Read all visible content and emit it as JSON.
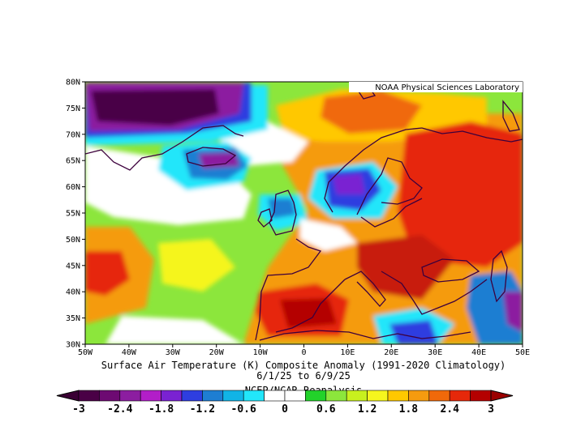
{
  "credit": "NOAA Physical Sciences Laboratory",
  "caption": {
    "line1": "Surface Air Temperature (K) Composite Anomaly (1991-2020 Climatology)",
    "line2": "6/1/25  to 6/9/25",
    "line3": "NCEP/NCAR Reanalysis"
  },
  "axes": {
    "lat_labels": [
      "80N",
      "75N",
      "70N",
      "65N",
      "60N",
      "55N",
      "50N",
      "45N",
      "40N",
      "35N",
      "30N"
    ],
    "lon_labels": [
      "50W",
      "40W",
      "30W",
      "20W",
      "10W",
      "0",
      "10E",
      "20E",
      "30E",
      "40E",
      "50E"
    ],
    "lat_range": [
      30,
      80
    ],
    "lon_range": [
      -50,
      50
    ]
  },
  "colorbar": {
    "colors": [
      "#4a0046",
      "#6d0a72",
      "#8c1ea0",
      "#b21ec8",
      "#7a22d2",
      "#2e3ee0",
      "#1e7ed2",
      "#11b4e6",
      "#22e6fa",
      "#ffffff",
      "#ffffff",
      "#22d22a",
      "#8ce63c",
      "#c8f01e",
      "#f5f51e",
      "#ffc800",
      "#f59b0f",
      "#f0690a",
      "#e6280a",
      "#b40000"
    ],
    "labels": [
      "-3",
      "-2.4",
      "-1.8",
      "-1.2",
      "-0.6",
      "0",
      "0.6",
      "1.2",
      "1.8",
      "2.4",
      "3"
    ],
    "range": [
      -3,
      3
    ]
  },
  "anomaly_field": [
    {
      "lon": -40,
      "lat": 75,
      "value": -3
    },
    {
      "lon": -30,
      "lat": 77,
      "value": -2.7
    },
    {
      "lon": -18,
      "lat": 65,
      "value": -2.4
    },
    {
      "lon": 6,
      "lat": 61,
      "value": -1.6
    },
    {
      "lon": -5,
      "lat": 55,
      "value": -0.9
    },
    {
      "lon": 15,
      "lat": 56,
      "value": -0.9
    },
    {
      "lon": -10,
      "lat": 69,
      "value": 1.2
    },
    {
      "lon": 10,
      "lat": 72,
      "value": 2.1
    },
    {
      "lon": 35,
      "lat": 65,
      "value": 2.7
    },
    {
      "lon": 45,
      "lat": 58,
      "value": 3
    },
    {
      "lon": 25,
      "lat": 47,
      "value": 3
    },
    {
      "lon": 0,
      "lat": 37,
      "value": 3
    },
    {
      "lon": -47,
      "lat": 42,
      "value": 3
    },
    {
      "lon": 22,
      "lat": 32,
      "value": -0.9
    },
    {
      "lon": 40,
      "lat": 35,
      "value": -1.2
    },
    {
      "lon": -35,
      "lat": 35,
      "value": 1.2
    }
  ]
}
